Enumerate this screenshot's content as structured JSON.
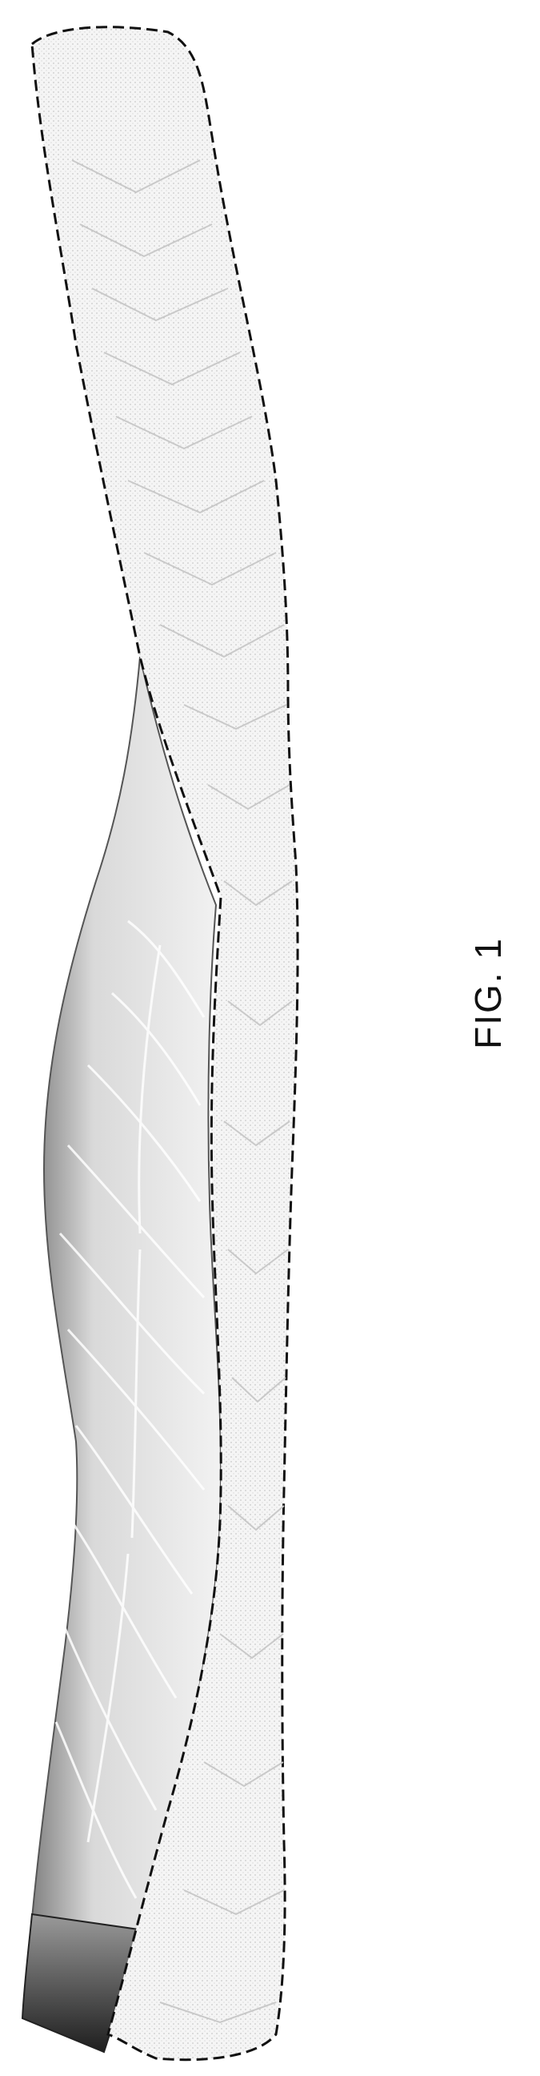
{
  "figure": {
    "label": "FIG. 1"
  },
  "colors": {
    "outline": "#111111",
    "insole_fill": "#f4f4f4",
    "shell_dark": "#2a2a2a",
    "shell_mid": "#8a8a8a",
    "shell_light": "#e6e6e6"
  }
}
